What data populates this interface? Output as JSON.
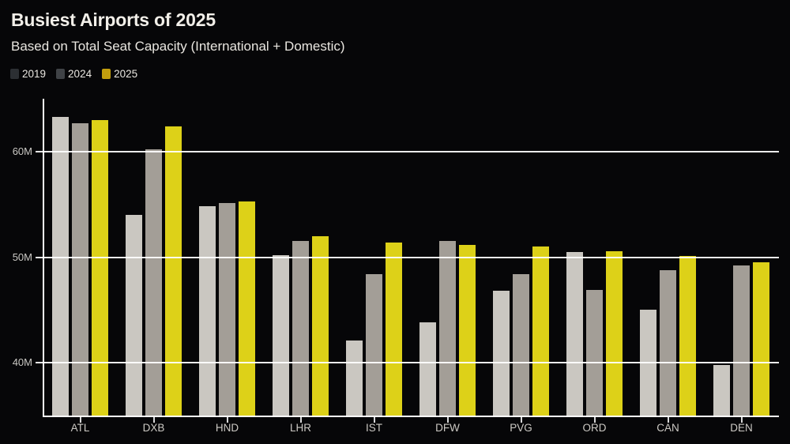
{
  "header": {
    "title": "Busiest Airports of 2025",
    "subtitle": "Based on Total Seat Capacity (International + Domestic)"
  },
  "legend": {
    "items": [
      {
        "label": "2019",
        "swatch_color": "#2c2f33"
      },
      {
        "label": "2024",
        "swatch_color": "#3f4246"
      },
      {
        "label": "2025",
        "swatch_color": "#c29e0e"
      }
    ]
  },
  "colors": {
    "background": "#060608",
    "bar_2019": "#cac7c1",
    "bar_2024": "#a39e97",
    "bar_2025": "#ddd118",
    "gridline": "#ffffff",
    "title_text": "#f2efe9",
    "axis_text": "#c9c7c3"
  },
  "chart_data": {
    "type": "bar",
    "title": "Busiest Airports of 2025",
    "subtitle": "Based on Total Seat Capacity (International + Domestic)",
    "categories": [
      "ATL",
      "DXB",
      "HND",
      "LHR",
      "IST",
      "DFW",
      "PVG",
      "ORD",
      "CAN",
      "DEN"
    ],
    "series": [
      {
        "name": "2019",
        "color": "#cac7c1",
        "values": [
          63.3,
          54.0,
          54.8,
          50.2,
          42.1,
          43.8,
          46.8,
          50.5,
          45.0,
          39.8
        ]
      },
      {
        "name": "2024",
        "color": "#a39e97",
        "values": [
          62.7,
          60.2,
          55.1,
          51.5,
          48.4,
          51.5,
          48.4,
          46.9,
          48.8,
          49.2
        ]
      },
      {
        "name": "2025",
        "color": "#ddd118",
        "values": [
          63.0,
          62.4,
          55.3,
          52.0,
          51.4,
          51.2,
          51.0,
          50.6,
          50.1,
          49.5
        ]
      }
    ],
    "xlabel": "",
    "ylabel": "",
    "units": "M",
    "ylim": [
      35,
      65
    ],
    "yticks": [
      {
        "value": 40,
        "label": "40M"
      },
      {
        "value": 50,
        "label": "50M"
      },
      {
        "value": 60,
        "label": "60M"
      }
    ],
    "grid": "horizontal white lines at y ticks, drawn over bars",
    "legend_position": "top-left"
  }
}
